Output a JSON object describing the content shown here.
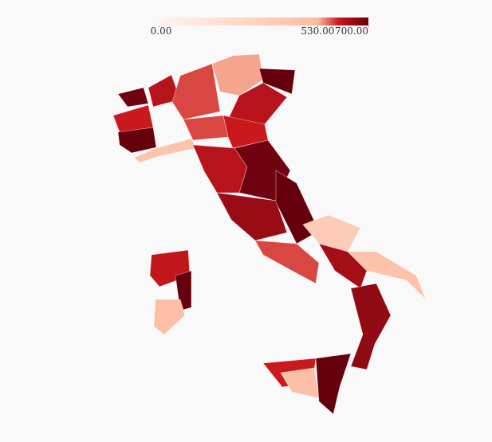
{
  "chart_data": {
    "type": "choropleth",
    "values": [
      690,
      600,
      700,
      450,
      620,
      580,
      540,
      700,
      620,
      580,
      600,
      620,
      690,
      650,
      700,
      580,
      380,
      470,
      640,
      660,
      600,
      500,
      700,
      610,
      700,
      500
    ],
    "colorscale": [
      [
        0,
        "#fff5f0"
      ],
      [
        530,
        "#fcbba1"
      ],
      [
        600,
        "#cb181d"
      ],
      [
        700,
        "#67000d"
      ]
    ],
    "clim": [
      0,
      700
    ],
    "cticks": [
      {
        "value": 0,
        "label": "0.00"
      },
      {
        "value": 530,
        "label": "530.00"
      },
      {
        "value": 700,
        "label": "700.00"
      }
    ]
  }
}
